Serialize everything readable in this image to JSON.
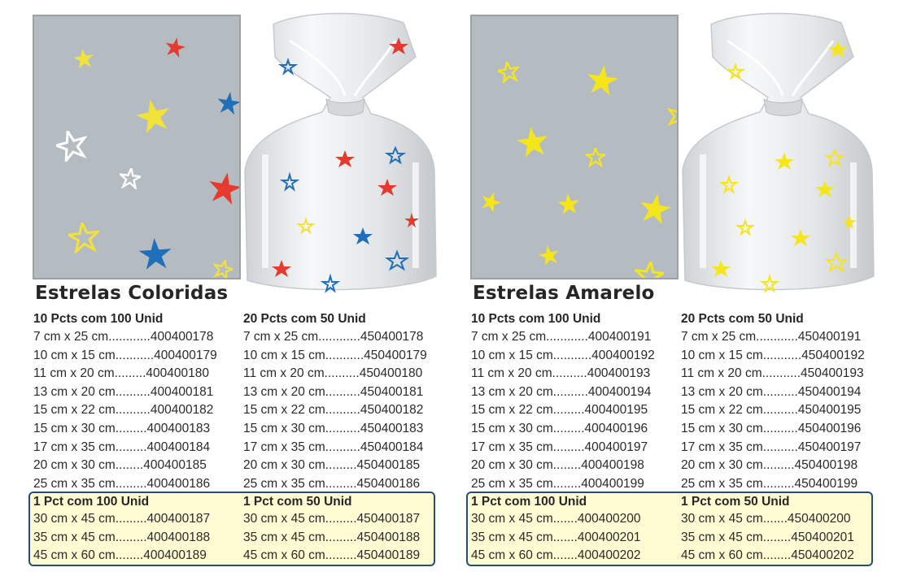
{
  "products": [
    {
      "title": "Estrelas Coloridas",
      "colors": {
        "red": "#e53a2f",
        "blue": "#1f6fb9",
        "yellow": "#f2e23a",
        "white": "#ffffff"
      },
      "columns": [
        {
          "header": "10 Pcts com 100 Unid",
          "rows": [
            "7 cm x 25 cm............400400178",
            "10 cm x 15 cm...........400400179",
            "11 cm x 20 cm.........400400180",
            "13 cm x 20 cm..........400400181",
            "15 cm x 22 cm..........400400182",
            "15 cm x 30 cm.........400400183",
            "17 cm x 35 cm.........400400184",
            "20 cm x 30 cm........400400185",
            "25 cm x 35 cm.........400400186"
          ]
        },
        {
          "header": "20 Pcts com 50 Unid",
          "rows": [
            "7 cm x 25 cm............450400178",
            "10 cm x 15 cm...........450400179",
            "11 cm x 20 cm..........450400180",
            "13 cm x 20 cm..........450400181",
            "15 cm x 22 cm..........450400182",
            "15 cm x 30 cm..........450400183",
            "17 cm x 35 cm..........450400184",
            "20 cm x 30 cm.........450400185",
            "25 cm x 35 cm.........450400186"
          ]
        }
      ],
      "highlight": [
        {
          "header": "1 Pct com 100 Unid",
          "rows": [
            "30 cm x 45 cm.........400400187",
            "35 cm x 45 cm.........400400188",
            "45 cm x 60 cm........400400189"
          ]
        },
        {
          "header": "1 Pct com 50 Unid",
          "rows": [
            "30 cm x 45 cm.........450400187",
            "35 cm x 45 cm.........450400188",
            "45 cm x 60 cm.........450400189"
          ]
        }
      ]
    },
    {
      "title": "Estrelas Amarelo",
      "colors": {
        "yellow": "#f5e61c"
      },
      "columns": [
        {
          "header": "10 Pcts com 100 Unid",
          "rows": [
            "7 cm x 25 cm............400400191",
            "10 cm x 15 cm...........400400192",
            "11 cm x 20 cm..........400400193",
            "13 cm x 20 cm..........400400194",
            "15 cm x 22 cm.........400400195",
            "15 cm x 30 cm.........400400196",
            "17 cm x 35 cm.........400400197",
            "20 cm x 30 cm........400400198",
            "25 cm x 35 cm........400400199"
          ]
        },
        {
          "header": "20 Pcts com 50 Unid",
          "rows": [
            "7 cm x 25 cm............450400191",
            "10 cm x 15 cm...........450400192",
            "11 cm x 20 cm...........450400193",
            "13 cm x 20 cm..........450400194",
            "15 cm x 22 cm..........450400195",
            "15 cm x 30 cm..........450400196",
            "17 cm x 35 cm..........450400197",
            "20 cm x 30 cm.........450400198",
            "25 cm x 35 cm.........450400199"
          ]
        }
      ],
      "highlight": [
        {
          "header": "1 Pct com 100 Unid",
          "rows": [
            "30 cm x 45 cm.......400400200",
            "35 cm x 45 cm.......400400201",
            "45 cm x 60 cm.......400400202"
          ]
        },
        {
          "header": "1 Pct com 50 Unid",
          "rows": [
            "30 cm x 45 cm.......450400200",
            "35 cm x 45 cm........450400201",
            "45 cm x 60 cm........450400202"
          ]
        }
      ]
    }
  ],
  "icons": {
    "pattern_star": "star-icon",
    "bag": "cellophane-bag-icon"
  }
}
